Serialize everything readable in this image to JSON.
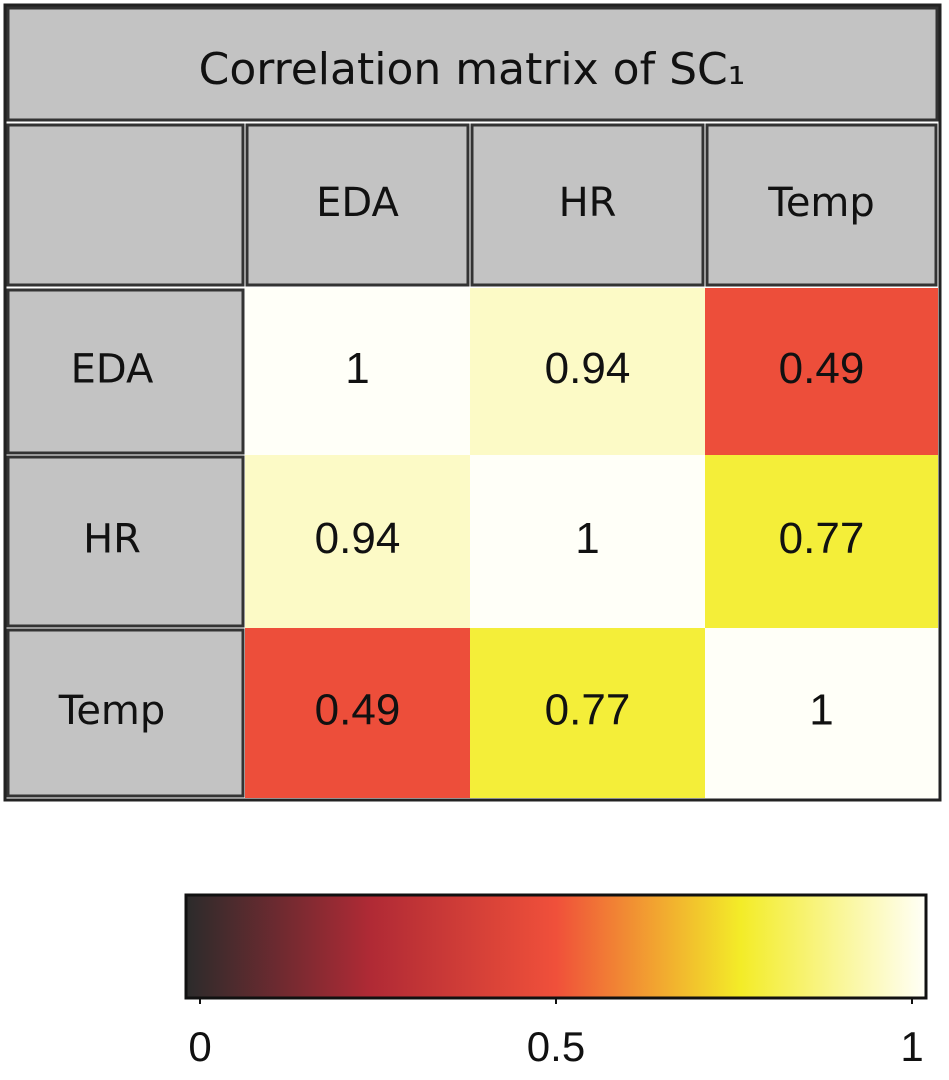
{
  "chart_data": {
    "type": "heatmap",
    "title": "Correlation matrix of SC₁",
    "x_categories": [
      "EDA",
      "HR",
      "Temp"
    ],
    "y_categories": [
      "EDA",
      "HR",
      "Temp"
    ],
    "values": [
      [
        1,
        0.94,
        0.49
      ],
      [
        0.94,
        1,
        0.77
      ],
      [
        0.49,
        0.77,
        1
      ]
    ],
    "colormap": [
      "#2b2b2b",
      "#b02a35",
      "#f0503a",
      "#f3ec28",
      "#fffff8"
    ],
    "clim": [
      0,
      1
    ],
    "colorbar_ticks": [
      0,
      0.5,
      1
    ]
  }
}
